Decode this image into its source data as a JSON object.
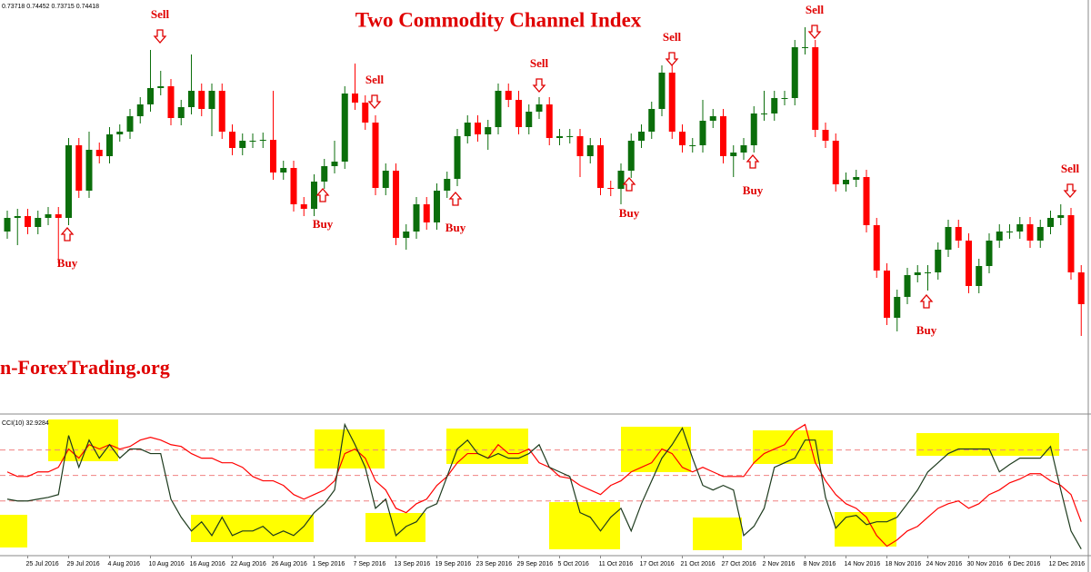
{
  "chart_data": [
    {
      "type": "candlestick",
      "title": "Two Commodity Channel Index",
      "header": "0.73718 0.74452 0.73715 0.74418",
      "watermark": "n-ForexTrading.org",
      "up_color": "#0b6e0b",
      "down_color": "#ff0000",
      "ylim": [
        0.7345,
        0.78
      ],
      "annotations": [
        "Buy",
        "Sell",
        "Buy",
        "Sell",
        "Buy",
        "Sell",
        "Buy",
        "Sell",
        "Buy",
        "Sell",
        "Buy",
        "Sell"
      ],
      "annotation_color": "#e00000",
      "open": [
        0.7545,
        0.756,
        0.7562,
        0.755,
        0.756,
        0.7564,
        0.756,
        0.764,
        0.759,
        0.7635,
        0.7628,
        0.7652,
        0.7655,
        0.7672,
        0.7685,
        0.7703,
        0.7705,
        0.767,
        0.7682,
        0.77,
        0.768,
        0.77,
        0.7655,
        0.7637,
        0.7645,
        0.7645,
        0.7646,
        0.761,
        0.7615,
        0.7575,
        0.757,
        0.76,
        0.7617,
        0.7622,
        0.7697,
        0.7687,
        0.7665,
        0.7593,
        0.7612,
        0.7538,
        0.7545,
        0.7575,
        0.7555,
        0.759,
        0.7603,
        0.765,
        0.7665,
        0.7652,
        0.766,
        0.77,
        0.769,
        0.766,
        0.7677,
        0.7685,
        0.7648,
        0.765,
        0.765,
        0.7628,
        0.764,
        0.7593,
        0.7592,
        0.7612,
        0.7645,
        0.7655,
        0.768,
        0.772,
        0.7655,
        0.764,
        0.764,
        0.7667,
        0.7672,
        0.7628,
        0.7632,
        0.764,
        0.7675,
        0.7675,
        0.7692,
        0.7692,
        0.7748,
        0.7748,
        0.7657,
        0.7645,
        0.7597,
        0.7602,
        0.7605,
        0.7552,
        0.7502,
        0.745,
        0.7473,
        0.7497,
        0.75,
        0.75,
        0.7525,
        0.755,
        0.7535,
        0.7485,
        0.7507,
        0.7535,
        0.7545,
        0.7545,
        0.7553,
        0.7535,
        0.755,
        0.756,
        0.7563,
        0.75
      ],
      "high": [
        0.7568,
        0.757,
        0.757,
        0.7568,
        0.7572,
        0.7572,
        0.7648,
        0.7648,
        0.7655,
        0.7643,
        0.766,
        0.7663,
        0.768,
        0.7693,
        0.7745,
        0.7722,
        0.7713,
        0.769,
        0.774,
        0.7708,
        0.7708,
        0.7708,
        0.7663,
        0.7653,
        0.7653,
        0.7654,
        0.77,
        0.7623,
        0.7623,
        0.7583,
        0.7608,
        0.7625,
        0.7645,
        0.7705,
        0.773,
        0.7695,
        0.7673,
        0.762,
        0.762,
        0.7553,
        0.7583,
        0.7583,
        0.7598,
        0.7611,
        0.7658,
        0.7673,
        0.7673,
        0.7668,
        0.7708,
        0.7708,
        0.77,
        0.7685,
        0.7693,
        0.7693,
        0.7658,
        0.7658,
        0.7658,
        0.7648,
        0.7648,
        0.7601,
        0.762,
        0.7653,
        0.7663,
        0.7688,
        0.7728,
        0.7728,
        0.7663,
        0.7648,
        0.769,
        0.768,
        0.768,
        0.764,
        0.7648,
        0.7683,
        0.77,
        0.77,
        0.77,
        0.7756,
        0.777,
        0.7756,
        0.7665,
        0.7653,
        0.761,
        0.7613,
        0.7613,
        0.756,
        0.751,
        0.7481,
        0.7505,
        0.7508,
        0.7508,
        0.7533,
        0.7558,
        0.7558,
        0.7543,
        0.7515,
        0.7543,
        0.7553,
        0.7553,
        0.7561,
        0.7561,
        0.7558,
        0.7568,
        0.7575,
        0.7571,
        0.7508
      ],
      "low": [
        0.7537,
        0.753,
        0.7542,
        0.7542,
        0.7552,
        0.751,
        0.7552,
        0.7582,
        0.7582,
        0.762,
        0.762,
        0.7644,
        0.7647,
        0.7664,
        0.7677,
        0.7695,
        0.7662,
        0.7662,
        0.7674,
        0.7672,
        0.765,
        0.7647,
        0.7629,
        0.7629,
        0.7637,
        0.7637,
        0.7602,
        0.7602,
        0.7567,
        0.7562,
        0.7562,
        0.7592,
        0.7609,
        0.7614,
        0.7679,
        0.7657,
        0.7585,
        0.7585,
        0.753,
        0.7525,
        0.7537,
        0.7547,
        0.7547,
        0.7582,
        0.7595,
        0.7642,
        0.7644,
        0.7635,
        0.7652,
        0.7682,
        0.7652,
        0.7652,
        0.7669,
        0.764,
        0.764,
        0.7642,
        0.7605,
        0.762,
        0.7585,
        0.7584,
        0.7575,
        0.7604,
        0.7637,
        0.7647,
        0.7672,
        0.7647,
        0.7632,
        0.7632,
        0.7632,
        0.7659,
        0.762,
        0.7605,
        0.7624,
        0.7632,
        0.7667,
        0.7667,
        0.7684,
        0.7684,
        0.774,
        0.7649,
        0.7637,
        0.7589,
        0.7589,
        0.7594,
        0.7544,
        0.7494,
        0.7442,
        0.7435,
        0.7465,
        0.7489,
        0.748,
        0.7492,
        0.7517,
        0.7527,
        0.7477,
        0.7477,
        0.7499,
        0.7527,
        0.7537,
        0.7537,
        0.7527,
        0.7527,
        0.7542,
        0.7552,
        0.7492,
        0.743
      ],
      "close": [
        0.756,
        0.7562,
        0.755,
        0.756,
        0.7564,
        0.756,
        0.764,
        0.759,
        0.7635,
        0.7628,
        0.7652,
        0.7655,
        0.7672,
        0.7685,
        0.7703,
        0.7705,
        0.767,
        0.7682,
        0.77,
        0.768,
        0.77,
        0.7655,
        0.7637,
        0.7645,
        0.7645,
        0.7646,
        0.761,
        0.7615,
        0.7575,
        0.757,
        0.76,
        0.7617,
        0.7622,
        0.7697,
        0.7687,
        0.7665,
        0.7593,
        0.7612,
        0.7538,
        0.7545,
        0.7575,
        0.7555,
        0.759,
        0.7603,
        0.765,
        0.7665,
        0.7652,
        0.766,
        0.77,
        0.769,
        0.766,
        0.7677,
        0.7685,
        0.7648,
        0.765,
        0.765,
        0.7628,
        0.764,
        0.7593,
        0.7592,
        0.7612,
        0.7645,
        0.7655,
        0.768,
        0.772,
        0.7655,
        0.764,
        0.764,
        0.7667,
        0.7672,
        0.7628,
        0.7632,
        0.764,
        0.7675,
        0.7675,
        0.7692,
        0.7692,
        0.7748,
        0.7748,
        0.7657,
        0.7645,
        0.7597,
        0.7602,
        0.7605,
        0.7552,
        0.7502,
        0.745,
        0.7473,
        0.7497,
        0.75,
        0.75,
        0.7525,
        0.755,
        0.7535,
        0.7485,
        0.7507,
        0.7535,
        0.7545,
        0.7545,
        0.7553,
        0.7535,
        0.755,
        0.756,
        0.7563,
        0.75,
        0.7465
      ]
    },
    {
      "type": "line",
      "title": "CCI(10) 32.9284",
      "ylim": [
        -315,
        220
      ],
      "levels": [
        100,
        0,
        -100
      ],
      "level_color": "#f08080",
      "categories": [
        null,
        null,
        "25 Jul 2016",
        null,
        null,
        null,
        "29 Jul 2016",
        null,
        null,
        null,
        "4 Aug 2016",
        null,
        null,
        null,
        "10 Aug 2016",
        null,
        null,
        null,
        "16 Aug 2016",
        null,
        null,
        null,
        "22 Aug 2016",
        null,
        null,
        null,
        "26 Aug 2016",
        null,
        null,
        null,
        "1 Sep 2016",
        null,
        null,
        null,
        "7 Sep 2016",
        null,
        null,
        null,
        "13 Sep 2016",
        null,
        null,
        null,
        "19 Sep 2016",
        null,
        null,
        null,
        "23 Sep 2016",
        null,
        null,
        null,
        "29 Sep 2016",
        null,
        null,
        null,
        "5 Oct 2016",
        null,
        null,
        null,
        "11 Oct 2016",
        null,
        null,
        null,
        "17 Oct 2016",
        null,
        null,
        null,
        "21 Oct 2016",
        null,
        null,
        null,
        "27 Oct 2016",
        null,
        null,
        null,
        "2 Nov 2016",
        null,
        null,
        null,
        "8 Nov 2016",
        null,
        null,
        null,
        "14 Nov 2016",
        null,
        null,
        null,
        "18 Nov 2016",
        null,
        null,
        null,
        "24 Nov 2016",
        null,
        null,
        null,
        "30 Nov 2016",
        null,
        null,
        null,
        "6 Dec 2016",
        null,
        null,
        null,
        "12 Dec 2016",
        null,
        null,
        null
      ],
      "series": [
        {
          "color": "#1e3b1e",
          "values": [
            -93,
            -100,
            -100,
            -93,
            -86,
            -75,
            157,
            32,
            139,
            68,
            121,
            68,
            104,
            104,
            86,
            86,
            -93,
            -164,
            -218,
            -182,
            -236,
            -164,
            -236,
            -218,
            -218,
            -200,
            -236,
            -218,
            -236,
            -200,
            -146,
            -111,
            -57,
            200,
            121,
            32,
            -129,
            -93,
            -236,
            -200,
            -182,
            -129,
            -111,
            -4,
            104,
            139,
            86,
            68,
            86,
            68,
            68,
            86,
            121,
            32,
            14,
            -4,
            -146,
            -164,
            -218,
            -164,
            -129,
            -218,
            -111,
            -21,
            68,
            121,
            186,
            68,
            -39,
            -57,
            -39,
            -57,
            -236,
            -200,
            -129,
            32,
            50,
            68,
            139,
            139,
            -86,
            -207,
            -164,
            -157,
            -193,
            -182,
            -182,
            -164,
            -111,
            -57,
            14,
            50,
            86,
            104,
            104,
            104,
            104,
            14,
            43,
            68,
            68,
            68,
            114,
            -57,
            -218,
            -289
          ]
        },
        {
          "color": "#ff0000",
          "values": [
            14,
            -4,
            -4,
            14,
            14,
            32,
            104,
            68,
            121,
            104,
            121,
            104,
            114,
            139,
            150,
            139,
            121,
            114,
            86,
            68,
            68,
            50,
            50,
            32,
            -4,
            -21,
            -21,
            -39,
            -75,
            -93,
            -75,
            -57,
            -21,
            86,
            104,
            68,
            -21,
            -57,
            -129,
            -146,
            -111,
            -93,
            -39,
            -4,
            50,
            86,
            86,
            68,
            121,
            86,
            86,
            104,
            50,
            32,
            -4,
            -11,
            -39,
            -57,
            -75,
            -39,
            -21,
            14,
            32,
            50,
            104,
            86,
            32,
            14,
            32,
            14,
            -4,
            -4,
            -4,
            50,
            86,
            104,
            121,
            175,
            200,
            50,
            -21,
            -75,
            -111,
            -129,
            -164,
            -236,
            -278,
            -253,
            -218,
            -200,
            -164,
            -129,
            -111,
            -100,
            -129,
            -111,
            -75,
            -57,
            -29,
            -14,
            7,
            7,
            -21,
            -39,
            -75,
            -182
          ]
        }
      ]
    }
  ]
}
